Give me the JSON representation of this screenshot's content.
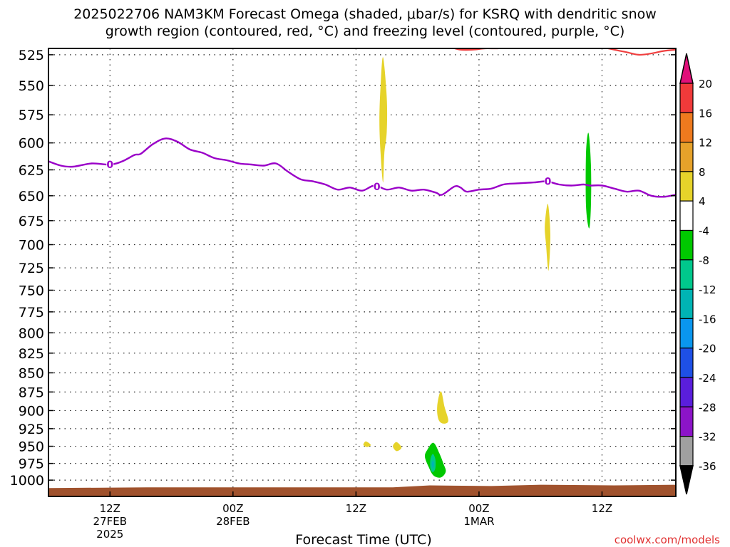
{
  "title": {
    "line1": "2025022706 NAM3KM Forecast Omega (shaded, μbar/s) for KSRQ with dendritic snow",
    "line2": "growth region (contoured, red, °C) and freezing level (contoured, purple, °C)"
  },
  "watermark": "coolwx.com/models",
  "chart_data": {
    "type": "heatmap",
    "title": "2025022706 NAM3KM Forecast Omega (shaded, μbar/s) for KSRQ with dendritic snow growth region (contoured, red, °C) and freezing level (contoured, purple, °C)",
    "xlabel": "Forecast Time (UTC)",
    "ylabel": "",
    "y_scale": "log-pressure (inverted)",
    "ylim": [
      1025,
      520
    ],
    "xlim_hours": [
      2,
      53
    ],
    "grid": true,
    "y_ticks": [
      525,
      550,
      575,
      600,
      625,
      650,
      675,
      700,
      725,
      750,
      775,
      800,
      825,
      850,
      875,
      900,
      925,
      950,
      975,
      1000
    ],
    "x_ticks": [
      {
        "hour": 7,
        "label": "12Z",
        "sub1": "27FEB",
        "sub2": "2025"
      },
      {
        "hour": 17,
        "label": "00Z",
        "sub1": "28FEB",
        "sub2": ""
      },
      {
        "hour": 27,
        "label": "12Z",
        "sub1": "",
        "sub2": ""
      },
      {
        "hour": 37,
        "label": "00Z",
        "sub1": "1MAR",
        "sub2": ""
      },
      {
        "hour": 47,
        "label": "12Z",
        "sub1": "",
        "sub2": ""
      }
    ],
    "colorbar": {
      "labels": [
        "20",
        "16",
        "12",
        "8",
        "4",
        "-4",
        "-8",
        "-12",
        "-16",
        "-20",
        "-24",
        "-28",
        "-32",
        "-36"
      ],
      "colors": [
        "#f03a3a",
        "#ee7a1e",
        "#e6a22a",
        "#e6d32a",
        "#ffffff",
        "#00c800",
        "#00c88c",
        "#00b4b4",
        "#0a96ee",
        "#1e50e6",
        "#5a1edc",
        "#8c14c8",
        "#a0a0a0"
      ],
      "top_arrow_color": "#e0107a",
      "bottom_arrow_color": "#000000"
    },
    "freezing_level": {
      "color": "#9a00c8",
      "label": "0",
      "points": [
        [
          2.0,
          617
        ],
        [
          3.0,
          621
        ],
        [
          4.0,
          622
        ],
        [
          5.5,
          619
        ],
        [
          7.0,
          620
        ],
        [
          8.0,
          617
        ],
        [
          9.0,
          611
        ],
        [
          9.5,
          610
        ],
        [
          10.5,
          601
        ],
        [
          11.5,
          596
        ],
        [
          12.5,
          599
        ],
        [
          13.5,
          606
        ],
        [
          14.5,
          609
        ],
        [
          15.5,
          614
        ],
        [
          16.5,
          616
        ],
        [
          17.5,
          619
        ],
        [
          18.5,
          620
        ],
        [
          19.5,
          621
        ],
        [
          20.5,
          619
        ],
        [
          21.5,
          627
        ],
        [
          22.5,
          634
        ],
        [
          23.5,
          636
        ],
        [
          24.5,
          639
        ],
        [
          25.5,
          644
        ],
        [
          26.5,
          642
        ],
        [
          27.5,
          645
        ],
        [
          28.5,
          640
        ],
        [
          29.5,
          644
        ],
        [
          30.5,
          642
        ],
        [
          31.5,
          645
        ],
        [
          32.5,
          644
        ],
        [
          33.5,
          647
        ],
        [
          34.0,
          649
        ],
        [
          35.0,
          641
        ],
        [
          35.5,
          642
        ],
        [
          36.0,
          646
        ],
        [
          37.0,
          644
        ],
        [
          38.0,
          643
        ],
        [
          39.0,
          639
        ],
        [
          40.0,
          638
        ],
        [
          41.5,
          637
        ],
        [
          42.5,
          636
        ],
        [
          43.5,
          639
        ],
        [
          44.5,
          640
        ],
        [
          45.5,
          639
        ],
        [
          46.0,
          640
        ],
        [
          47.0,
          640
        ],
        [
          48.0,
          643
        ],
        [
          49.0,
          646
        ],
        [
          50.0,
          645
        ],
        [
          51.0,
          650
        ],
        [
          52.0,
          651
        ],
        [
          53.0,
          649
        ]
      ],
      "label_positions": [
        [
          7.0,
          620
        ],
        [
          28.7,
          641
        ],
        [
          42.6,
          636
        ]
      ]
    },
    "dendritic_contour": {
      "color": "#f04040",
      "segments": [
        [
          [
            34.7,
            519
          ],
          [
            35.5,
            521
          ],
          [
            36.5,
            521
          ],
          [
            37.5,
            520
          ],
          [
            38.5,
            520
          ],
          [
            39.3,
            519
          ]
        ],
        [
          [
            47.0,
            519
          ],
          [
            48.0,
            521
          ],
          [
            49.0,
            523
          ],
          [
            50.0,
            525
          ],
          [
            51.0,
            524
          ],
          [
            52.0,
            522
          ],
          [
            53.0,
            521
          ]
        ]
      ]
    },
    "omega_regions": [
      {
        "color": "#e6d32a",
        "value_range": [
          4,
          8
        ],
        "points": [
          [
            29.2,
            527
          ],
          [
            29.5,
            560
          ],
          [
            29.5,
            590
          ],
          [
            29.3,
            610
          ],
          [
            29.2,
            637
          ],
          [
            29.0,
            610
          ],
          [
            28.9,
            580
          ],
          [
            29.0,
            550
          ]
        ]
      },
      {
        "color": "#e6d32a",
        "value_range": [
          4,
          8
        ],
        "points": [
          [
            42.6,
            658
          ],
          [
            42.8,
            690
          ],
          [
            42.65,
            728
          ],
          [
            42.45,
            700
          ],
          [
            42.35,
            680
          ]
        ]
      },
      {
        "color": "#00c800",
        "value_range": [
          -8,
          -4
        ],
        "points": [
          [
            45.9,
            591
          ],
          [
            46.1,
            620
          ],
          [
            46.1,
            660
          ],
          [
            45.95,
            683
          ],
          [
            45.7,
            660
          ],
          [
            45.7,
            610
          ]
        ]
      },
      {
        "color": "#e6d32a",
        "value_range": [
          4,
          8
        ],
        "points": [
          [
            33.9,
            874
          ],
          [
            34.2,
            895
          ],
          [
            34.5,
            914
          ],
          [
            34.1,
            918
          ],
          [
            33.7,
            912
          ],
          [
            33.6,
            894
          ]
        ]
      },
      {
        "color": "#e6d32a",
        "value_range": [
          4,
          8
        ],
        "points": [
          [
            27.8,
            943
          ],
          [
            28.2,
            948
          ],
          [
            27.9,
            951
          ],
          [
            27.6,
            948
          ]
        ]
      },
      {
        "color": "#e6d32a",
        "value_range": [
          4,
          8
        ],
        "points": [
          [
            30.3,
            944
          ],
          [
            30.7,
            952
          ],
          [
            30.3,
            957
          ],
          [
            30.0,
            950
          ]
        ]
      },
      {
        "color": "#00c800",
        "value_range": [
          -8,
          -4
        ],
        "points": [
          [
            33.3,
            945
          ],
          [
            33.8,
            961
          ],
          [
            34.1,
            975
          ],
          [
            34.3,
            987
          ],
          [
            33.9,
            996
          ],
          [
            33.3,
            993
          ],
          [
            32.9,
            980
          ],
          [
            32.6,
            965
          ],
          [
            32.8,
            955
          ]
        ]
      },
      {
        "color": "#00c88c",
        "value_range": [
          -12,
          -8
        ],
        "points": [
          [
            33.25,
            961
          ],
          [
            33.45,
            969
          ],
          [
            33.45,
            982
          ],
          [
            33.25,
            988
          ],
          [
            33.05,
            982
          ],
          [
            33.05,
            969
          ]
        ]
      },
      {
        "color": "#00b4b4",
        "value_range": [
          -16,
          -12
        ],
        "points": [
          [
            33.25,
            971
          ],
          [
            33.35,
            976
          ],
          [
            33.25,
            982
          ],
          [
            33.15,
            976
          ]
        ]
      }
    ],
    "terrain": {
      "color": "#a0522d",
      "surface_pressure": [
        [
          2,
          1012
        ],
        [
          10,
          1011
        ],
        [
          20,
          1011
        ],
        [
          30,
          1011
        ],
        [
          33,
          1008
        ],
        [
          38,
          1009
        ],
        [
          42,
          1007
        ],
        [
          48,
          1008
        ],
        [
          53,
          1007
        ]
      ]
    }
  }
}
